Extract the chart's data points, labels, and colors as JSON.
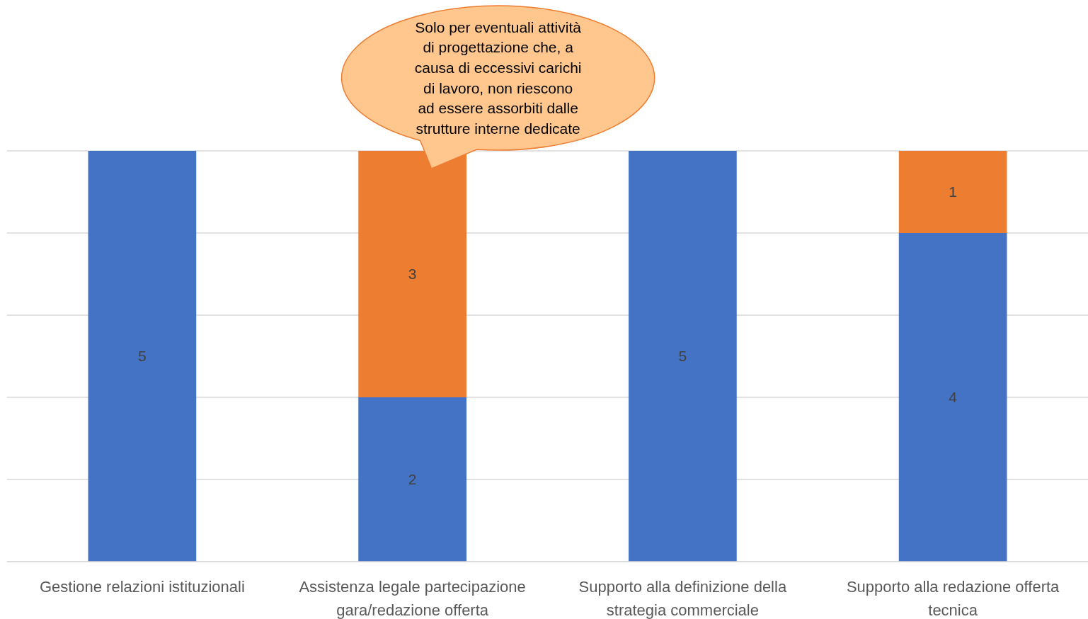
{
  "chart_data": {
    "type": "bar",
    "stacked": true,
    "categories": [
      "Gestione relazioni istituzionali",
      "Assistenza legale partecipazione gara/redazione offerta",
      "Supporto alla definizione della strategia commerciale",
      "Supporto alla redazione offerta tecnica"
    ],
    "series": [
      {
        "color": "#4472c4",
        "values": [
          5,
          2,
          5,
          4
        ]
      },
      {
        "color": "#ed7d31",
        "values": [
          null,
          3,
          null,
          1
        ]
      }
    ],
    "ylim": [
      0,
      5
    ],
    "yticks": [
      {
        "value": 0,
        "label": null
      },
      {
        "value": 1,
        "label": null
      },
      {
        "value": 2,
        "label": null
      },
      {
        "value": 3,
        "label": null
      },
      {
        "value": 4,
        "label": null
      },
      {
        "value": 5,
        "label": null
      }
    ],
    "grid": "y",
    "tick_labels": "x",
    "data_labels": true,
    "annotations": [
      {
        "text": "Solo per eventuali attività di progettazione che, a causa di eccessivi carichi di lavoro, non riescono ad essere assorbiti dalle strutture interne dedicate",
        "x": "Assistenza legale partecipazione gara/redazione offerta",
        "y": 5
      }
    ]
  }
}
